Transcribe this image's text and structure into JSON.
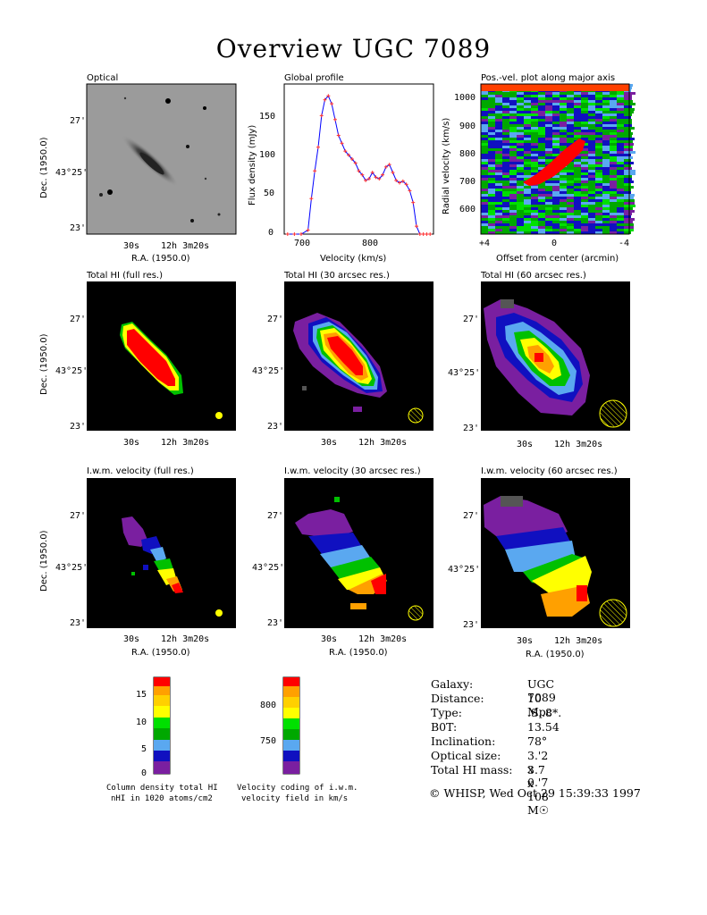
{
  "title": "Overview UGC 7089",
  "panels": {
    "optical": "Optical",
    "global_profile": "Global profile",
    "pv": "Pos.-vel. plot along major axis",
    "hi_full": "Total HI (full res.)",
    "hi_30": "Total HI (30 arcsec res.)",
    "hi_60": "Total HI (60 arcsec res.)",
    "vel_full": "I.w.m. velocity (full res.)",
    "vel_30": "I.w.m. velocity (30 arcsec res.)",
    "vel_60": "I.w.m. velocity (60 arcsec res.)"
  },
  "axes": {
    "dec_label": "Dec. (1950.0)",
    "ra_label": "R.A. (1950.0)",
    "dec_ticks": [
      "27'",
      "43°25'",
      "23'"
    ],
    "ra_ticks": [
      "30s",
      "12h 3m20s"
    ]
  },
  "profile": {
    "xlabel": "Velocity (km/s)",
    "ylabel": "Flux density (mJy)",
    "xticks": [
      "700",
      "800"
    ],
    "yticks": [
      "0",
      "50",
      "100",
      "150"
    ]
  },
  "pv_axes": {
    "xlabel": "Offset from center (arcmin)",
    "ylabel": "Radial velocity (km/s)",
    "xticks": [
      "+4",
      "0",
      "-4"
    ],
    "yticks": [
      "1000",
      "900",
      "800",
      "700",
      "600"
    ]
  },
  "colorbars": {
    "density_ticks": [
      "15",
      "10",
      "5",
      "0"
    ],
    "density_caption1": "Column density total HI",
    "density_caption2": "nHI in 1020 atoms/cm2",
    "velocity_ticks": [
      "800",
      "750"
    ],
    "velocity_caption1": "Velocity coding of i.w.m.",
    "velocity_caption2": "velocity field in km/s",
    "colors": [
      "#7a1fa0",
      "#1010c0",
      "#5aa8f0",
      "#00a800",
      "#00e000",
      "#ffff00",
      "#ffd000",
      "#ffa000",
      "#ff0000"
    ]
  },
  "info": [
    {
      "k": "Galaxy:",
      "v": "UGC 7089"
    },
    {
      "k": "Distance:",
      "v": "10 Mpc"
    },
    {
      "k": "Type:",
      "v": ".S..8*."
    },
    {
      "k": "B0T:",
      "v": "13.54"
    },
    {
      "k": "Inclination:",
      "v": "78°"
    },
    {
      "k": "Optical size:",
      "v": "3.'2 x 0.'7"
    },
    {
      "k": "Total HI mass:",
      "v": "3.7 x 108 M☉"
    }
  ],
  "footer": "© WHISP, Wed Oct 29 15:39:33 1997",
  "chart_data": {
    "type": "line",
    "title": "Global profile",
    "xlabel": "Velocity (km/s)",
    "ylabel": "Flux density (mJy)",
    "xlim": [
      660,
      880
    ],
    "ylim": [
      0,
      190
    ],
    "x": [
      665,
      675,
      685,
      695,
      700,
      705,
      710,
      715,
      720,
      725,
      730,
      735,
      740,
      745,
      750,
      755,
      760,
      765,
      770,
      775,
      780,
      785,
      790,
      795,
      800,
      805,
      810,
      815,
      820,
      825,
      830,
      835,
      840,
      845,
      850,
      855,
      860,
      865,
      870,
      875
    ],
    "y": [
      0,
      0,
      0,
      5,
      45,
      80,
      110,
      150,
      170,
      175,
      165,
      145,
      125,
      115,
      105,
      100,
      95,
      90,
      80,
      75,
      68,
      70,
      78,
      72,
      70,
      75,
      85,
      88,
      78,
      68,
      65,
      67,
      63,
      55,
      40,
      10,
      0,
      0,
      0,
      0
    ]
  }
}
